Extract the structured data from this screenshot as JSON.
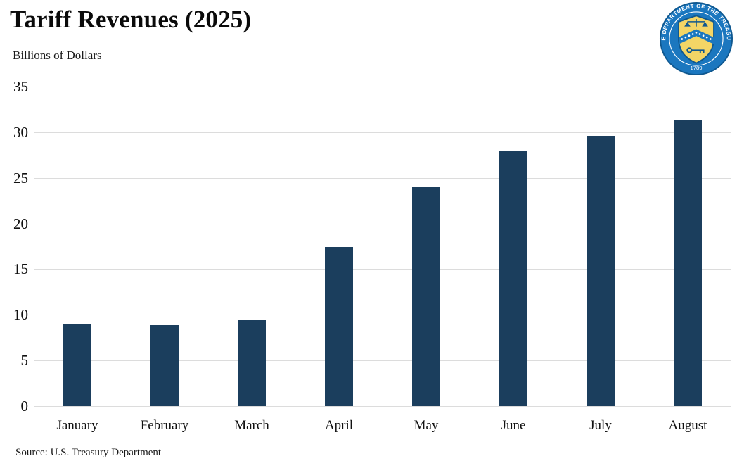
{
  "header": {
    "title": "Tariff Revenues (2025)",
    "subtitle": "Billions of Dollars",
    "seal": {
      "ring_text": "THE DEPARTMENT OF THE TREASURY",
      "year": "1789"
    }
  },
  "chart_data": {
    "type": "bar",
    "title": "Tariff Revenues (2025)",
    "ylabel": "Billions of Dollars",
    "xlabel": "",
    "categories": [
      "January",
      "February",
      "March",
      "April",
      "May",
      "June",
      "July",
      "August"
    ],
    "values": [
      9.0,
      8.9,
      9.5,
      17.4,
      24.0,
      28.0,
      29.6,
      31.4
    ],
    "ylim": [
      0,
      35
    ],
    "yticks": [
      0,
      5,
      10,
      15,
      20,
      25,
      30,
      35
    ],
    "grid": true,
    "legend": "none",
    "bar_color": "#1b3e5d",
    "gridline_color": "#dcdcdc"
  },
  "footer": {
    "source": "Source: U.S. Treasury Department"
  },
  "colors": {
    "seal_blue": "#1b77bf",
    "seal_dark_blue": "#10588f",
    "seal_gold": "#f3d566",
    "bar": "#1b3e5d"
  }
}
